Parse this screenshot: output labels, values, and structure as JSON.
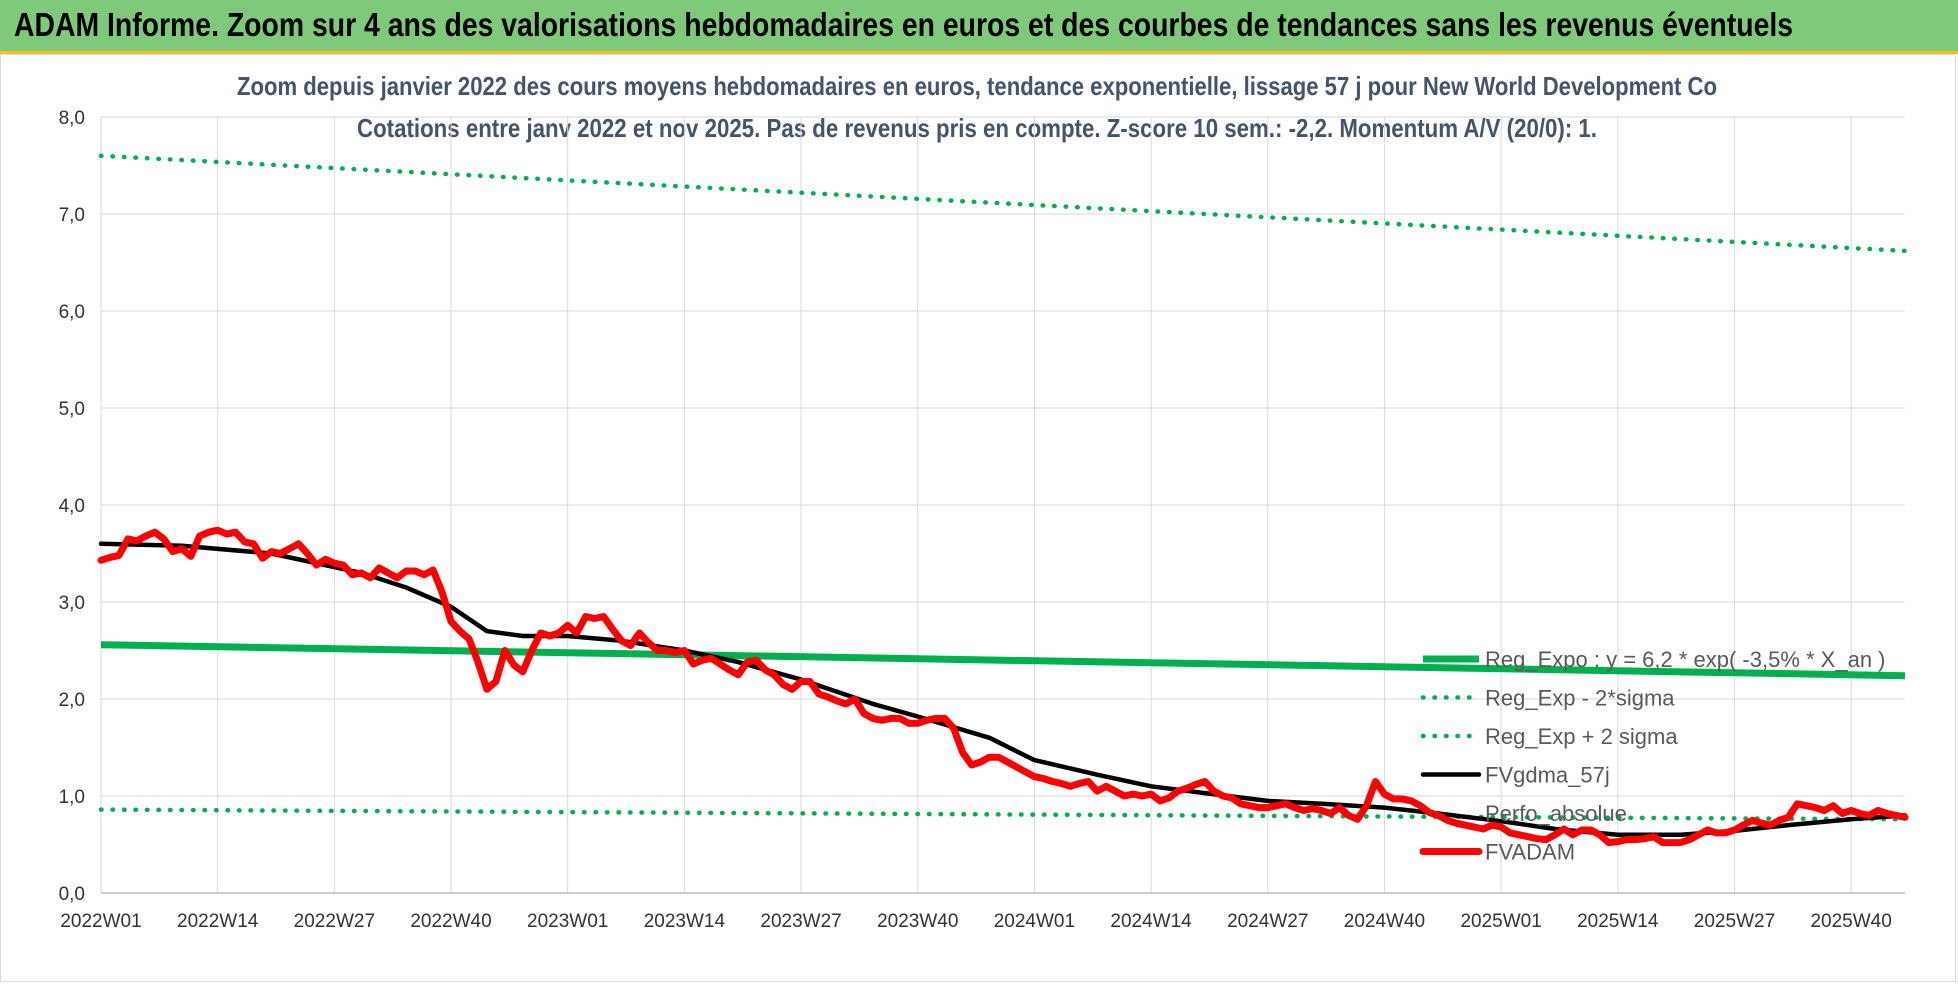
{
  "banner": {
    "title": "ADAM Informe. Zoom sur 4 ans des valorisations hebdomadaires en euros et des courbes de tendances sans les revenus éventuels"
  },
  "colors": {
    "banner_bg": "#7fc97a",
    "accent_line": "#f0c419",
    "reg_expo": "#00b050",
    "sigma_lines": "#00b050",
    "fvgdma": "#000000",
    "fvadam": "#ff0000",
    "subtitle": "#44546a"
  },
  "chart_data": {
    "type": "line",
    "title": "Zoom depuis janvier 2022 des cours moyens hebdomadaires en euros, tendance exponentielle, lissage 57 j pour New World Development Co",
    "subtitle": "Cotations entre janv 2022 et nov 2025. Pas de revenus pris en compte. Z-score 10 sem.: -2,2. Momentum A/V (20/0): 1.",
    "xlabel": "",
    "ylabel": "",
    "ylim": [
      0,
      8
    ],
    "yticks": [
      "0,0",
      "1,0",
      "2,0",
      "3,0",
      "4,0",
      "5,0",
      "6,0",
      "7,0",
      "8,0"
    ],
    "xticks": [
      "2022W01",
      "2022W14",
      "2022W27",
      "2022W40",
      "2023W01",
      "2023W14",
      "2023W27",
      "2023W40",
      "2024W01",
      "2024W14",
      "2024W27",
      "2024W40",
      "2025W01",
      "2025W14",
      "2025W27",
      "2025W40"
    ],
    "grid": true,
    "legend_position": "bottom-right",
    "series": [
      {
        "name": "Reg_Expo : y = 6,2 * exp( -3,5% * X_an )",
        "style": "solid-thick",
        "points": [
          [
            "2022W01",
            2.56
          ],
          [
            "2025W46",
            2.24
          ]
        ]
      },
      {
        "name": "Reg_Exp - 2*sigma",
        "style": "dotted",
        "points": [
          [
            "2022W01",
            0.86
          ],
          [
            "2025W46",
            0.76
          ]
        ]
      },
      {
        "name": "Reg_Exp + 2 sigma",
        "style": "dotted",
        "points": [
          [
            "2022W01",
            7.6
          ],
          [
            "2025W46",
            6.62
          ]
        ]
      },
      {
        "name": "FVgdma_57j",
        "style": "solid",
        "points": [
          [
            "2022W01",
            3.6
          ],
          [
            "2022W10",
            3.58
          ],
          [
            "2022W20",
            3.5
          ],
          [
            "2022W30",
            3.3
          ],
          [
            "2022W35",
            3.15
          ],
          [
            "2022W40",
            2.95
          ],
          [
            "2022W44",
            2.7
          ],
          [
            "2022W48",
            2.65
          ],
          [
            "2023W01",
            2.65
          ],
          [
            "2023W07",
            2.6
          ],
          [
            "2023W14",
            2.5
          ],
          [
            "2023W20",
            2.38
          ],
          [
            "2023W27",
            2.2
          ],
          [
            "2023W35",
            1.95
          ],
          [
            "2023W40",
            1.82
          ],
          [
            "2023W48",
            1.6
          ],
          [
            "2024W01",
            1.37
          ],
          [
            "2024W08",
            1.22
          ],
          [
            "2024W14",
            1.1
          ],
          [
            "2024W20",
            1.03
          ],
          [
            "2024W27",
            0.95
          ],
          [
            "2024W33",
            0.92
          ],
          [
            "2024W40",
            0.88
          ],
          [
            "2024W46",
            0.82
          ],
          [
            "2025W01",
            0.74
          ],
          [
            "2025W07",
            0.66
          ],
          [
            "2025W14",
            0.6
          ],
          [
            "2025W21",
            0.6
          ],
          [
            "2025W27",
            0.64
          ],
          [
            "2025W33",
            0.7
          ],
          [
            "2025W40",
            0.76
          ],
          [
            "2025W46",
            0.8
          ]
        ]
      },
      {
        "name": "Perfo_absolue",
        "style": "hidden",
        "points": []
      },
      {
        "name": "FVADAM",
        "style": "solid-thick",
        "points": [
          [
            "2022W01",
            3.43
          ],
          [
            "2022W02",
            3.46
          ],
          [
            "2022W03",
            3.48
          ],
          [
            "2022W04",
            3.65
          ],
          [
            "2022W05",
            3.63
          ],
          [
            "2022W06",
            3.68
          ],
          [
            "2022W07",
            3.72
          ],
          [
            "2022W08",
            3.65
          ],
          [
            "2022W09",
            3.52
          ],
          [
            "2022W10",
            3.55
          ],
          [
            "2022W11",
            3.47
          ],
          [
            "2022W12",
            3.68
          ],
          [
            "2022W13",
            3.72
          ],
          [
            "2022W14",
            3.74
          ],
          [
            "2022W15",
            3.7
          ],
          [
            "2022W16",
            3.72
          ],
          [
            "2022W17",
            3.62
          ],
          [
            "2022W18",
            3.6
          ],
          [
            "2022W19",
            3.45
          ],
          [
            "2022W20",
            3.52
          ],
          [
            "2022W21",
            3.5
          ],
          [
            "2022W22",
            3.55
          ],
          [
            "2022W23",
            3.6
          ],
          [
            "2022W24",
            3.5
          ],
          [
            "2022W25",
            3.38
          ],
          [
            "2022W26",
            3.44
          ],
          [
            "2022W27",
            3.4
          ],
          [
            "2022W28",
            3.38
          ],
          [
            "2022W29",
            3.28
          ],
          [
            "2022W30",
            3.3
          ],
          [
            "2022W31",
            3.25
          ],
          [
            "2022W32",
            3.35
          ],
          [
            "2022W33",
            3.3
          ],
          [
            "2022W34",
            3.25
          ],
          [
            "2022W35",
            3.32
          ],
          [
            "2022W36",
            3.32
          ],
          [
            "2022W37",
            3.28
          ],
          [
            "2022W38",
            3.33
          ],
          [
            "2022W39",
            3.1
          ],
          [
            "2022W40",
            2.8
          ],
          [
            "2022W41",
            2.7
          ],
          [
            "2022W42",
            2.62
          ],
          [
            "2022W43",
            2.38
          ],
          [
            "2022W44",
            2.1
          ],
          [
            "2022W45",
            2.18
          ],
          [
            "2022W46",
            2.5
          ],
          [
            "2022W47",
            2.35
          ],
          [
            "2022W48",
            2.28
          ],
          [
            "2022W49",
            2.5
          ],
          [
            "2022W50",
            2.68
          ],
          [
            "2022W51",
            2.65
          ],
          [
            "2022W52",
            2.68
          ],
          [
            "2023W01",
            2.76
          ],
          [
            "2023W02",
            2.68
          ],
          [
            "2023W03",
            2.85
          ],
          [
            "2023W04",
            2.83
          ],
          [
            "2023W05",
            2.85
          ],
          [
            "2023W06",
            2.72
          ],
          [
            "2023W07",
            2.6
          ],
          [
            "2023W08",
            2.55
          ],
          [
            "2023W09",
            2.68
          ],
          [
            "2023W10",
            2.58
          ],
          [
            "2023W11",
            2.5
          ],
          [
            "2023W12",
            2.5
          ],
          [
            "2023W13",
            2.48
          ],
          [
            "2023W14",
            2.5
          ],
          [
            "2023W15",
            2.36
          ],
          [
            "2023W16",
            2.4
          ],
          [
            "2023W17",
            2.42
          ],
          [
            "2023W18",
            2.36
          ],
          [
            "2023W19",
            2.3
          ],
          [
            "2023W20",
            2.25
          ],
          [
            "2023W21",
            2.38
          ],
          [
            "2023W22",
            2.4
          ],
          [
            "2023W23",
            2.3
          ],
          [
            "2023W24",
            2.25
          ],
          [
            "2023W25",
            2.15
          ],
          [
            "2023W26",
            2.1
          ],
          [
            "2023W27",
            2.18
          ],
          [
            "2023W28",
            2.18
          ],
          [
            "2023W29",
            2.05
          ],
          [
            "2023W30",
            2.02
          ],
          [
            "2023W31",
            1.98
          ],
          [
            "2023W32",
            1.95
          ],
          [
            "2023W33",
            2.0
          ],
          [
            "2023W34",
            1.85
          ],
          [
            "2023W35",
            1.8
          ],
          [
            "2023W36",
            1.78
          ],
          [
            "2023W37",
            1.8
          ],
          [
            "2023W38",
            1.8
          ],
          [
            "2023W39",
            1.75
          ],
          [
            "2023W40",
            1.75
          ],
          [
            "2023W41",
            1.78
          ],
          [
            "2023W42",
            1.8
          ],
          [
            "2023W43",
            1.8
          ],
          [
            "2023W44",
            1.7
          ],
          [
            "2023W45",
            1.45
          ],
          [
            "2023W46",
            1.32
          ],
          [
            "2023W47",
            1.35
          ],
          [
            "2023W48",
            1.4
          ],
          [
            "2023W49",
            1.4
          ],
          [
            "2023W50",
            1.35
          ],
          [
            "2023W51",
            1.3
          ],
          [
            "2023W52",
            1.25
          ],
          [
            "2024W01",
            1.2
          ],
          [
            "2024W02",
            1.18
          ],
          [
            "2024W03",
            1.15
          ],
          [
            "2024W04",
            1.13
          ],
          [
            "2024W05",
            1.1
          ],
          [
            "2024W06",
            1.13
          ],
          [
            "2024W07",
            1.15
          ],
          [
            "2024W08",
            1.05
          ],
          [
            "2024W09",
            1.1
          ],
          [
            "2024W10",
            1.05
          ],
          [
            "2024W11",
            1.0
          ],
          [
            "2024W12",
            1.02
          ],
          [
            "2024W13",
            1.0
          ],
          [
            "2024W14",
            1.02
          ],
          [
            "2024W15",
            0.95
          ],
          [
            "2024W16",
            0.98
          ],
          [
            "2024W17",
            1.05
          ],
          [
            "2024W18",
            1.08
          ],
          [
            "2024W19",
            1.12
          ],
          [
            "2024W20",
            1.15
          ],
          [
            "2024W21",
            1.05
          ],
          [
            "2024W22",
            1.0
          ],
          [
            "2024W23",
            0.98
          ],
          [
            "2024W24",
            0.92
          ],
          [
            "2024W25",
            0.9
          ],
          [
            "2024W26",
            0.88
          ],
          [
            "2024W27",
            0.88
          ],
          [
            "2024W28",
            0.9
          ],
          [
            "2024W29",
            0.92
          ],
          [
            "2024W30",
            0.88
          ],
          [
            "2024W31",
            0.85
          ],
          [
            "2024W32",
            0.87
          ],
          [
            "2024W33",
            0.85
          ],
          [
            "2024W34",
            0.82
          ],
          [
            "2024W35",
            0.88
          ],
          [
            "2024W36",
            0.8
          ],
          [
            "2024W37",
            0.76
          ],
          [
            "2024W38",
            0.9
          ],
          [
            "2024W39",
            1.15
          ],
          [
            "2024W40",
            1.02
          ],
          [
            "2024W41",
            0.97
          ],
          [
            "2024W42",
            0.97
          ],
          [
            "2024W43",
            0.95
          ],
          [
            "2024W44",
            0.9
          ],
          [
            "2024W45",
            0.83
          ],
          [
            "2024W46",
            0.8
          ],
          [
            "2024W47",
            0.75
          ],
          [
            "2024W48",
            0.72
          ],
          [
            "2024W49",
            0.7
          ],
          [
            "2024W50",
            0.68
          ],
          [
            "2024W51",
            0.66
          ],
          [
            "2024W52",
            0.7
          ],
          [
            "2025W01",
            0.68
          ],
          [
            "2025W02",
            0.62
          ],
          [
            "2025W03",
            0.6
          ],
          [
            "2025W04",
            0.58
          ],
          [
            "2025W05",
            0.56
          ],
          [
            "2025W06",
            0.55
          ],
          [
            "2025W07",
            0.6
          ],
          [
            "2025W08",
            0.66
          ],
          [
            "2025W09",
            0.6
          ],
          [
            "2025W10",
            0.65
          ],
          [
            "2025W11",
            0.65
          ],
          [
            "2025W12",
            0.6
          ],
          [
            "2025W13",
            0.52
          ],
          [
            "2025W14",
            0.53
          ],
          [
            "2025W15",
            0.55
          ],
          [
            "2025W16",
            0.55
          ],
          [
            "2025W17",
            0.56
          ],
          [
            "2025W18",
            0.58
          ],
          [
            "2025W19",
            0.52
          ],
          [
            "2025W20",
            0.52
          ],
          [
            "2025W21",
            0.52
          ],
          [
            "2025W22",
            0.55
          ],
          [
            "2025W23",
            0.6
          ],
          [
            "2025W24",
            0.65
          ],
          [
            "2025W25",
            0.62
          ],
          [
            "2025W26",
            0.62
          ],
          [
            "2025W27",
            0.65
          ],
          [
            "2025W28",
            0.7
          ],
          [
            "2025W29",
            0.75
          ],
          [
            "2025W30",
            0.72
          ],
          [
            "2025W31",
            0.7
          ],
          [
            "2025W32",
            0.75
          ],
          [
            "2025W33",
            0.78
          ],
          [
            "2025W34",
            0.92
          ],
          [
            "2025W35",
            0.9
          ],
          [
            "2025W36",
            0.88
          ],
          [
            "2025W37",
            0.85
          ],
          [
            "2025W38",
            0.9
          ],
          [
            "2025W39",
            0.82
          ],
          [
            "2025W40",
            0.85
          ],
          [
            "2025W41",
            0.82
          ],
          [
            "2025W42",
            0.8
          ],
          [
            "2025W43",
            0.85
          ],
          [
            "2025W44",
            0.82
          ],
          [
            "2025W45",
            0.8
          ],
          [
            "2025W46",
            0.78
          ]
        ]
      }
    ]
  }
}
